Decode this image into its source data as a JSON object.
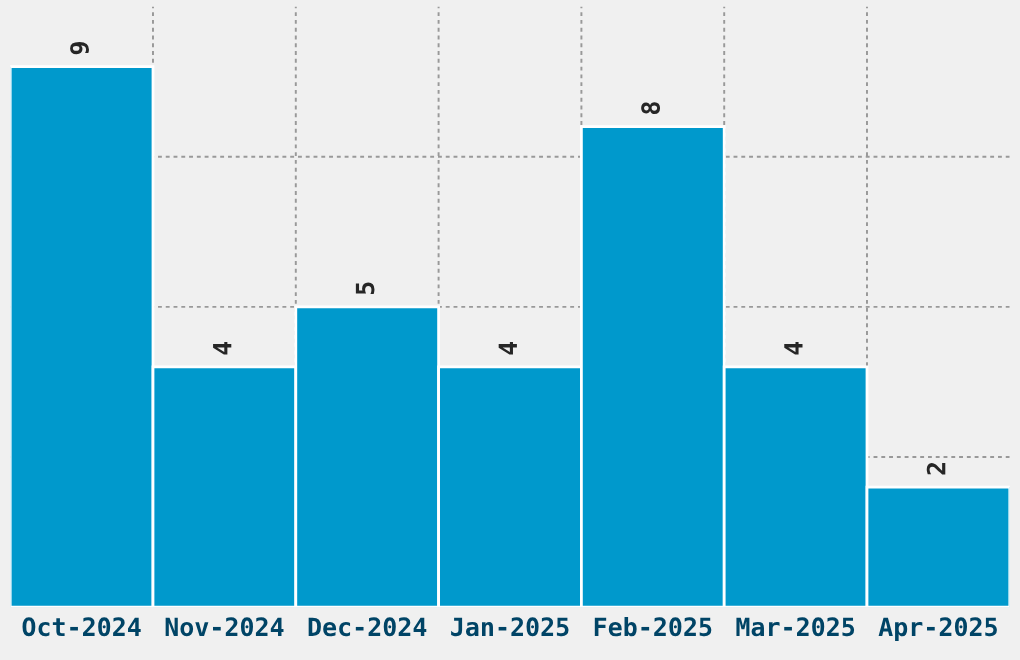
{
  "chart_data": {
    "type": "bar",
    "categories": [
      "Oct-2024",
      "Nov-2024",
      "Dec-2024",
      "Jan-2025",
      "Feb-2025",
      "Mar-2025",
      "Apr-2025"
    ],
    "values": [
      9,
      4,
      5,
      4,
      8,
      4,
      2
    ],
    "color": "#0099cc",
    "data_labels": true,
    "grid": true,
    "tick_labels": "x",
    "ylim": [
      0,
      10
    ],
    "yticks": [
      {
        "value": 2.5,
        "label": null
      },
      {
        "value": 5,
        "label": null
      },
      {
        "value": 7.5,
        "label": null
      }
    ]
  }
}
